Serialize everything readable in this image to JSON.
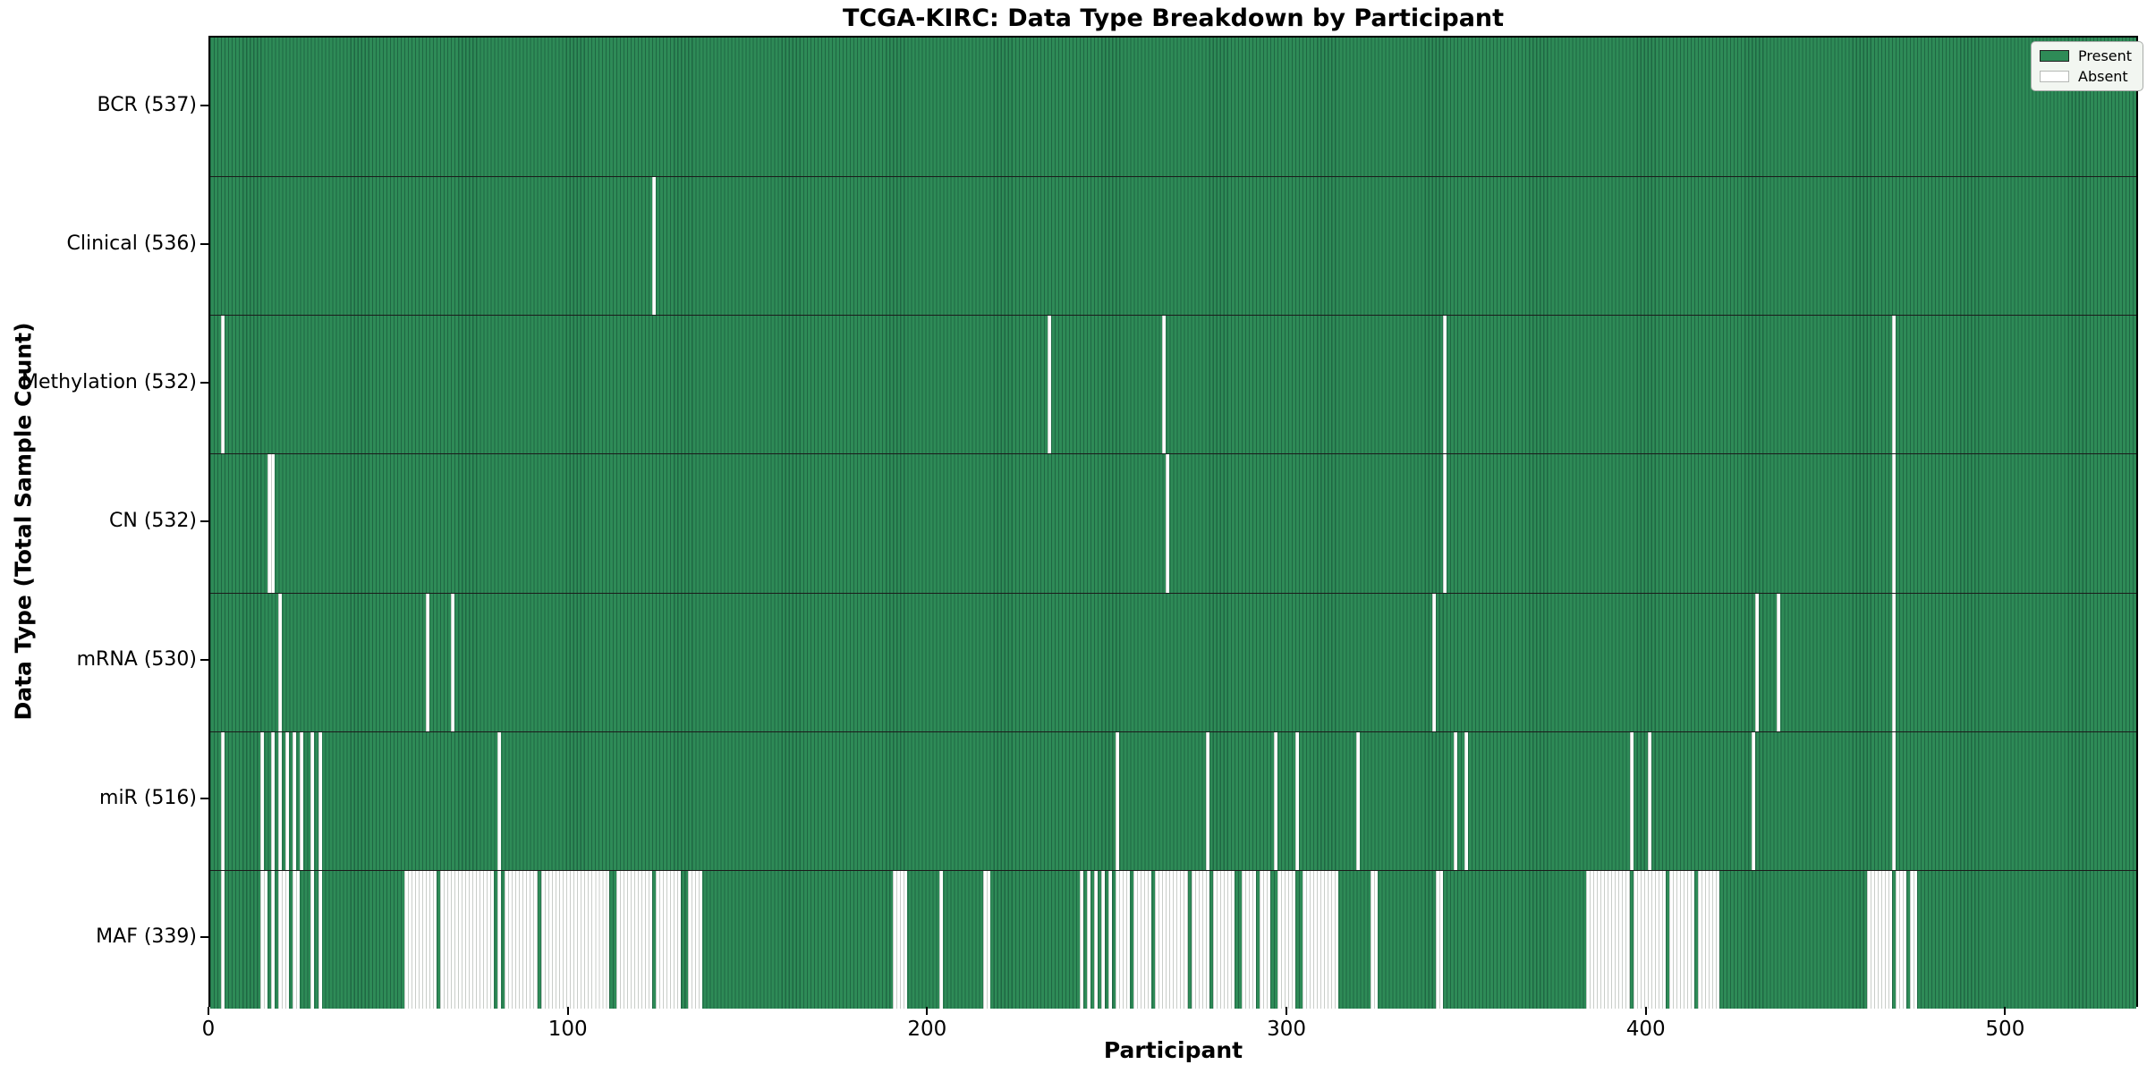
{
  "chart_data": {
    "type": "heatmap",
    "title": "TCGA-KIRC: Data Type Breakdown by Participant",
    "xlabel": "Participant",
    "ylabel": "Data Type (Total Sample Count)",
    "x_ticks": [
      0,
      100,
      200,
      300,
      400,
      500
    ],
    "n_participants": 537,
    "grid": false,
    "legend_position": "upper right",
    "legend": [
      {
        "label": "Present",
        "color": "#2e8b57",
        "edge": "#1f1f1f"
      },
      {
        "label": "Absent",
        "color": "#ffffff",
        "edge": "#b5b8b5"
      }
    ],
    "colors": {
      "present_fill": "#2e8b57",
      "present_edge": "#1f6743",
      "absent_fill": "#ffffff",
      "absent_edge": "#c9cdc9",
      "row_divider": "#1b1b1b",
      "plot_border": "#000000"
    },
    "rows": [
      {
        "label": "BCR (537)",
        "data_type": "BCR",
        "present_count": 537,
        "absent_ranges": []
      },
      {
        "label": "Clinical (536)",
        "data_type": "Clinical",
        "present_count": 536,
        "absent_ranges": [
          [
            123,
            123
          ]
        ]
      },
      {
        "label": "Methylation (532)",
        "data_type": "Methylation",
        "present_count": 532,
        "absent_ranges": [
          [
            3,
            3
          ],
          [
            233,
            233
          ],
          [
            265,
            265
          ],
          [
            343,
            343
          ],
          [
            468,
            468
          ]
        ]
      },
      {
        "label": "CN (532)",
        "data_type": "CN",
        "present_count": 532,
        "absent_ranges": [
          [
            16,
            17
          ],
          [
            266,
            266
          ],
          [
            343,
            343
          ],
          [
            468,
            468
          ]
        ]
      },
      {
        "label": "mRNA (530)",
        "data_type": "mRNA",
        "present_count": 530,
        "absent_ranges": [
          [
            19,
            19
          ],
          [
            60,
            60
          ],
          [
            67,
            67
          ],
          [
            340,
            340
          ],
          [
            430,
            430
          ],
          [
            436,
            436
          ],
          [
            468,
            468
          ]
        ]
      },
      {
        "label": "miR (516)",
        "data_type": "miR",
        "present_count": 516,
        "absent_ranges": [
          [
            3,
            3
          ],
          [
            14,
            14
          ],
          [
            17,
            17
          ],
          [
            19,
            19
          ],
          [
            21,
            21
          ],
          [
            23,
            23
          ],
          [
            25,
            25
          ],
          [
            28,
            28
          ],
          [
            30,
            30
          ],
          [
            80,
            80
          ],
          [
            252,
            252
          ],
          [
            277,
            277
          ],
          [
            296,
            296
          ],
          [
            302,
            302
          ],
          [
            319,
            319
          ],
          [
            346,
            346
          ],
          [
            349,
            349
          ],
          [
            395,
            395
          ],
          [
            400,
            400
          ],
          [
            429,
            429
          ],
          [
            468,
            468
          ]
        ]
      },
      {
        "label": "MAF (339)",
        "data_type": "MAF",
        "present_count": 339,
        "absent_ranges": [
          [
            3,
            3
          ],
          [
            14,
            15
          ],
          [
            17,
            17
          ],
          [
            19,
            21
          ],
          [
            23,
            24
          ],
          [
            28,
            28
          ],
          [
            30,
            30
          ],
          [
            54,
            62
          ],
          [
            64,
            78
          ],
          [
            80,
            80
          ],
          [
            82,
            90
          ],
          [
            92,
            110
          ],
          [
            113,
            122
          ],
          [
            124,
            130
          ],
          [
            133,
            136
          ],
          [
            190,
            193
          ],
          [
            203,
            203
          ],
          [
            215,
            216
          ],
          [
            242,
            242
          ],
          [
            244,
            244
          ],
          [
            246,
            246
          ],
          [
            248,
            248
          ],
          [
            250,
            250
          ],
          [
            252,
            255
          ],
          [
            257,
            261
          ],
          [
            263,
            265
          ],
          [
            266,
            271
          ],
          [
            273,
            277
          ],
          [
            279,
            284
          ],
          [
            287,
            290
          ],
          [
            292,
            294
          ],
          [
            297,
            301
          ],
          [
            304,
            313
          ],
          [
            323,
            324
          ],
          [
            341,
            342
          ],
          [
            383,
            394
          ],
          [
            396,
            404
          ],
          [
            406,
            412
          ],
          [
            414,
            419
          ],
          [
            461,
            467
          ],
          [
            469,
            471
          ],
          [
            473,
            474
          ]
        ]
      }
    ]
  }
}
